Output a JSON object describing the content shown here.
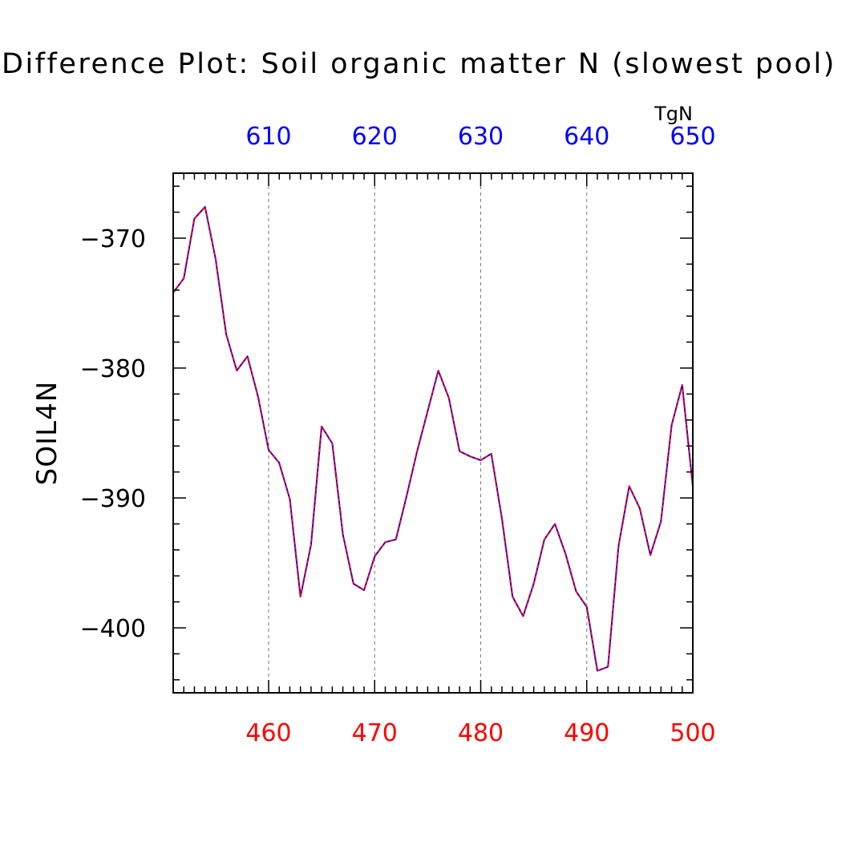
{
  "chart_data": {
    "type": "line",
    "title": "Difference Plot: Soil organic matter N (slowest pool)",
    "ylabel": "SOIL4N",
    "units": "TgN",
    "grid": "vertical dashed lines at major x ticks",
    "ylim": [
      -405,
      -365
    ],
    "y_ticks": [
      "-370",
      "-380",
      "-390",
      "-400"
    ],
    "y_tick_values": [
      -370,
      -380,
      -390,
      -400
    ],
    "x_bottom": {
      "range": [
        451,
        500
      ],
      "ticks": [
        460,
        470,
        480,
        490,
        500
      ],
      "tick_labels": [
        "460",
        "470",
        "480",
        "490",
        "500"
      ],
      "color": "#ff0000"
    },
    "x_top": {
      "range": [
        601,
        650
      ],
      "ticks": [
        610,
        620,
        630,
        640,
        650
      ],
      "tick_labels": [
        "610",
        "620",
        "630",
        "640",
        "650"
      ],
      "color": "#0000ff"
    },
    "series": [
      {
        "color": "#0000ff",
        "x": [
          451,
          452,
          453,
          454,
          455,
          456,
          457,
          458,
          459,
          460,
          461,
          462,
          463,
          464,
          465,
          466,
          467,
          468,
          469,
          470,
          471,
          472,
          473,
          474,
          475,
          476,
          477,
          478,
          479,
          480,
          481,
          482,
          483,
          484,
          485,
          486,
          487,
          488,
          489,
          490,
          491,
          492,
          493,
          494,
          495,
          496,
          497,
          498,
          499,
          500
        ],
        "values": [
          -374.2,
          -373.1,
          -368.5,
          -367.6,
          -371.6,
          -377.4,
          -380.2,
          -379.1,
          -382.2,
          -386.3,
          -387.3,
          -390.1,
          -397.6,
          -393.6,
          -384.5,
          -385.8,
          -392.8,
          -396.6,
          -397.1,
          -394.5,
          -393.4,
          -393.2,
          -389.9,
          -386.4,
          -383.3,
          -380.2,
          -382.3,
          -386.4,
          -386.8,
          -387.1,
          -386.6,
          -391.6,
          -397.6,
          -399.1,
          -396.6,
          -393.2,
          -392.0,
          -394.3,
          -397.2,
          -398.4,
          -403.3,
          -403.0,
          -393.7,
          -389.1,
          -390.8,
          -394.4,
          -391.8,
          -384.4,
          -381.3,
          -389.1
        ]
      },
      {
        "color": "#ff0000",
        "dashed": true,
        "x": [
          451,
          452,
          453,
          454,
          455,
          456,
          457,
          458,
          459,
          460,
          461,
          462,
          463,
          464,
          465,
          466,
          467,
          468,
          469,
          470,
          471,
          472,
          473,
          474,
          475,
          476,
          477,
          478,
          479,
          480,
          481,
          482,
          483,
          484,
          485,
          486,
          487,
          488,
          489,
          490,
          491,
          492,
          493,
          494,
          495,
          496,
          497,
          498,
          499,
          500
        ],
        "values": [
          -374.2,
          -373.1,
          -368.5,
          -367.6,
          -371.6,
          -377.4,
          -380.2,
          -379.1,
          -382.2,
          -386.3,
          -387.3,
          -390.1,
          -397.6,
          -393.6,
          -384.5,
          -385.8,
          -392.8,
          -396.6,
          -397.1,
          -394.5,
          -393.4,
          -393.2,
          -389.9,
          -386.4,
          -383.3,
          -380.2,
          -382.3,
          -386.4,
          -386.8,
          -387.1,
          -386.6,
          -391.6,
          -397.6,
          -399.1,
          -396.6,
          -393.2,
          -392.0,
          -394.3,
          -397.2,
          -398.4,
          -403.3,
          -403.0,
          -393.7,
          -389.1,
          -390.8,
          -394.4,
          -391.8,
          -384.4,
          -381.3,
          -389.1
        ]
      }
    ]
  }
}
